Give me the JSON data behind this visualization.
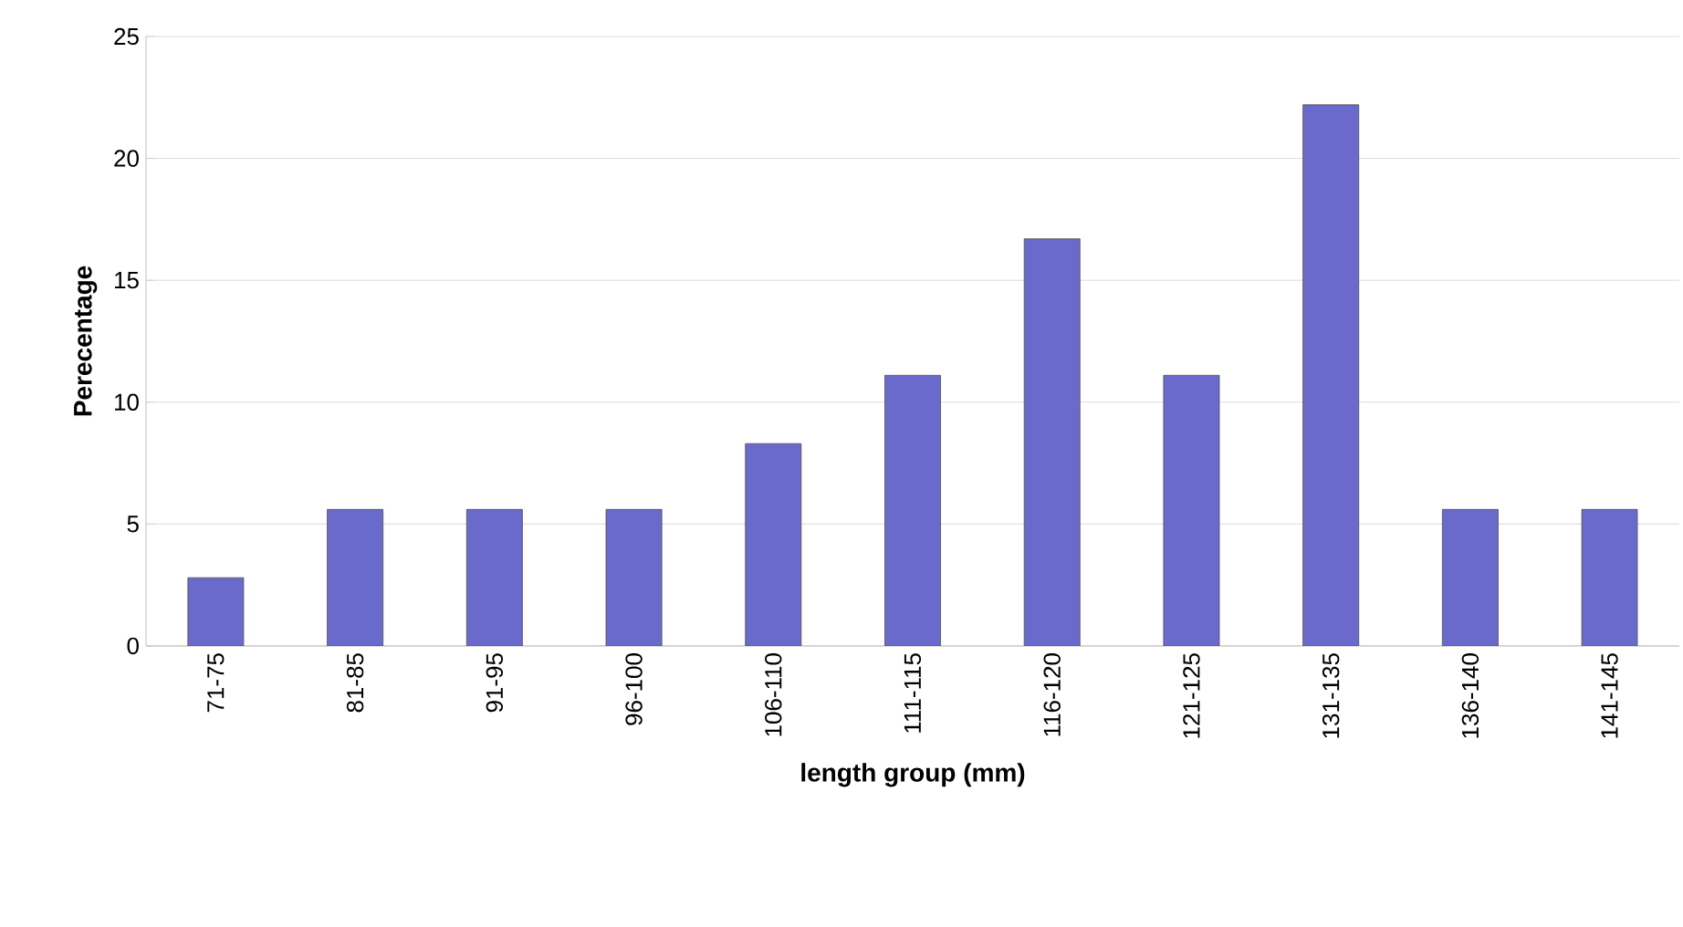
{
  "chart_data": {
    "type": "bar",
    "xlabel": "length group (mm)",
    "ylabel": "Perecentage",
    "categories": [
      "71-75",
      "81-85",
      "91-95",
      "96-100",
      "106-110",
      "111-115",
      "116-120",
      "121-125",
      "131-135",
      "136-140",
      "141-145"
    ],
    "values": [
      2.8,
      5.6,
      5.6,
      5.6,
      8.3,
      11.1,
      16.7,
      11.1,
      22.2,
      5.6,
      5.6
    ],
    "color": "#6a6acd",
    "ylim": [
      0,
      25
    ],
    "yticks": [
      0,
      5,
      10,
      15,
      20,
      25
    ],
    "grid": "y"
  }
}
